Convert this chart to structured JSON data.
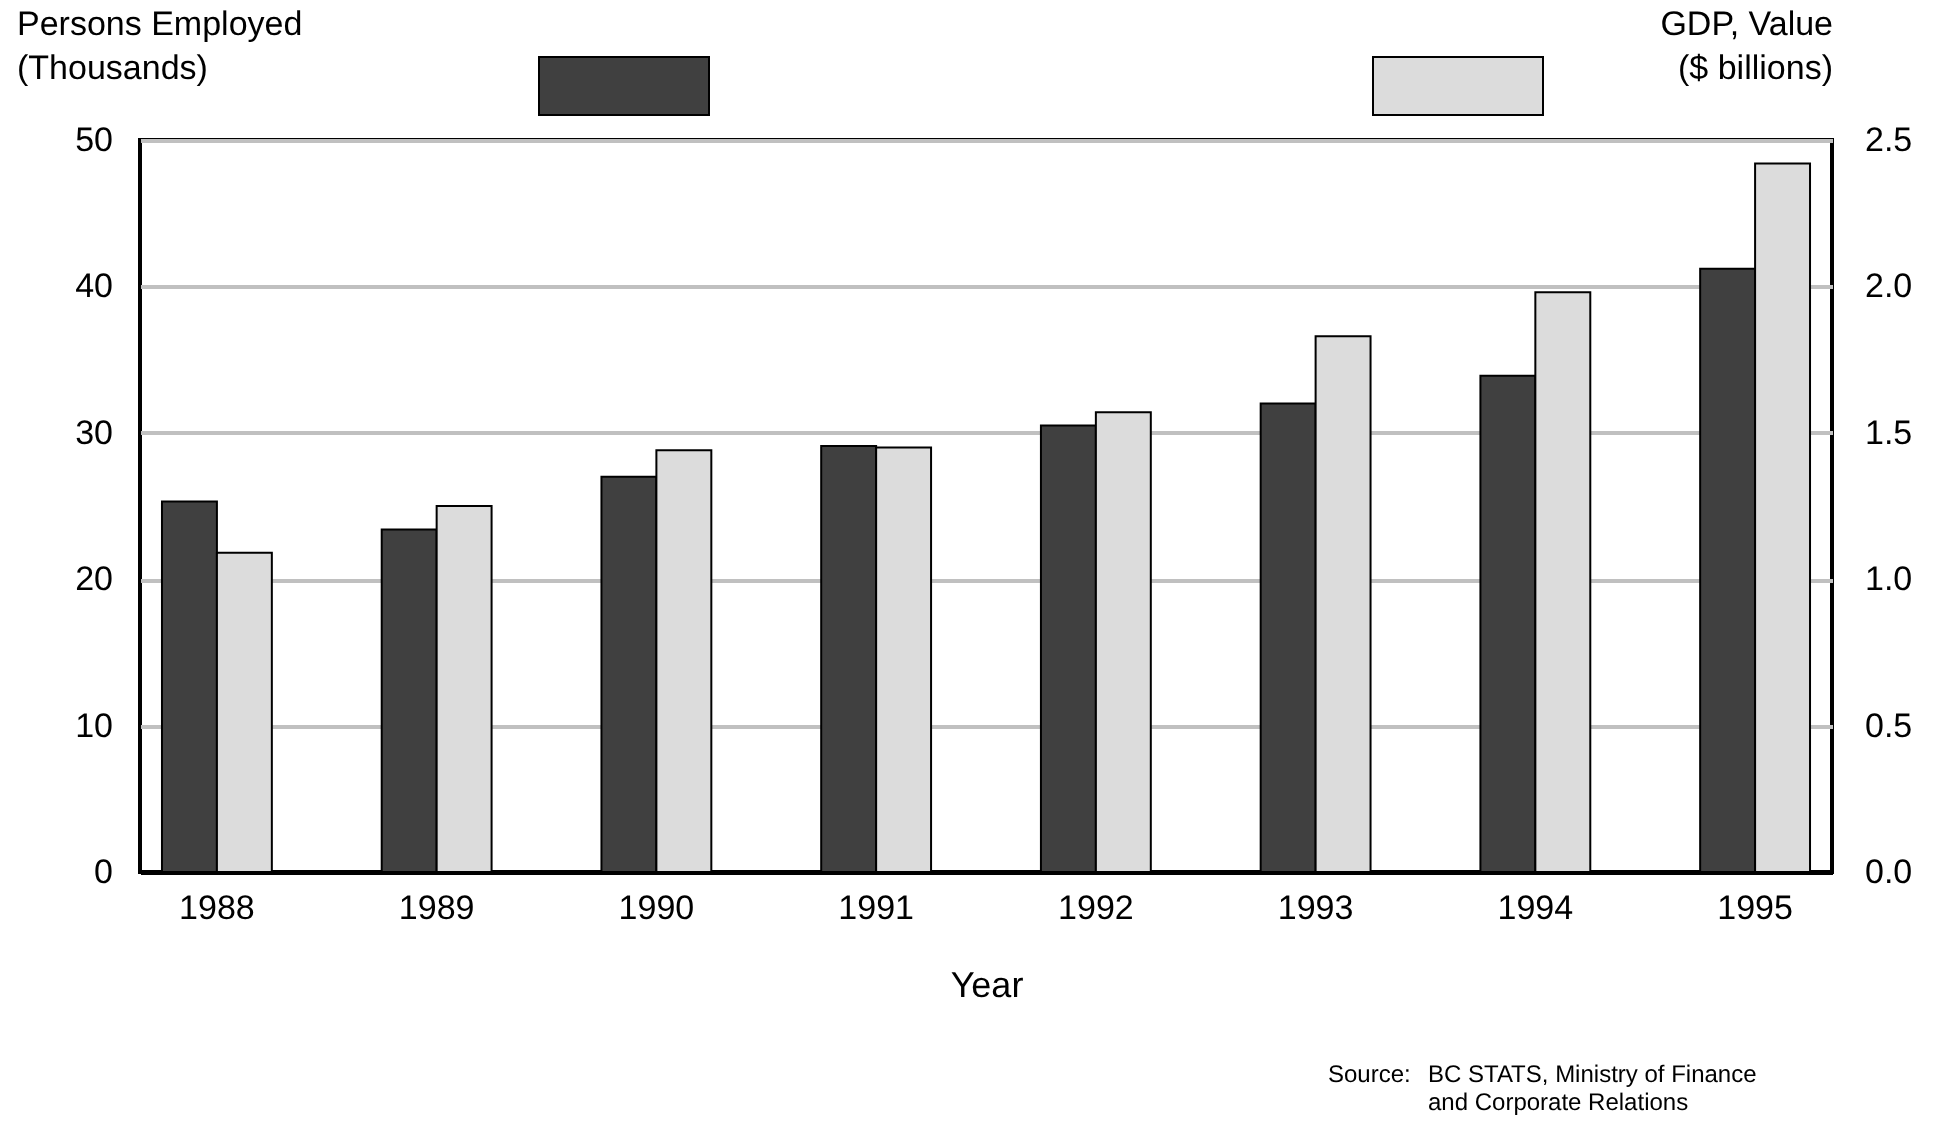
{
  "chart_data": {
    "type": "bar",
    "xlabel": "Year",
    "ylabel": "Persons Employed\n(Thousands)",
    "y2label": "GDP, Value\n($ billions)",
    "categories": [
      "1988",
      "1989",
      "1990",
      "1991",
      "1992",
      "1993",
      "1994",
      "1995"
    ],
    "series": [
      {
        "color": "#404040",
        "values": [
          25.3,
          23.4,
          27.0,
          29.1,
          30.5,
          32.0,
          33.9,
          41.2
        ]
      },
      {
        "color": "#dcdcdc",
        "axis": "y2",
        "values": [
          1.09,
          1.25,
          1.44,
          1.45,
          1.57,
          1.83,
          1.98,
          2.42
        ]
      }
    ],
    "ylim": [
      0,
      50
    ],
    "yticks": [
      0,
      10,
      20,
      30,
      40,
      50
    ],
    "y2lim": [
      0,
      2.5
    ],
    "y2ticks": [
      {
        "value": 0,
        "label": "0.0"
      },
      {
        "value": 0.5,
        "label": "0.5"
      },
      {
        "value": 1,
        "label": "1.0"
      },
      {
        "value": 1.5,
        "label": "1.5"
      },
      {
        "value": 2,
        "label": "2.0"
      },
      {
        "value": 2.5,
        "label": "2.5"
      }
    ],
    "grid": "y",
    "annotations": [
      "Source:\tBC STATS, Ministry of Finance\nand Corporate Relations"
    ]
  }
}
